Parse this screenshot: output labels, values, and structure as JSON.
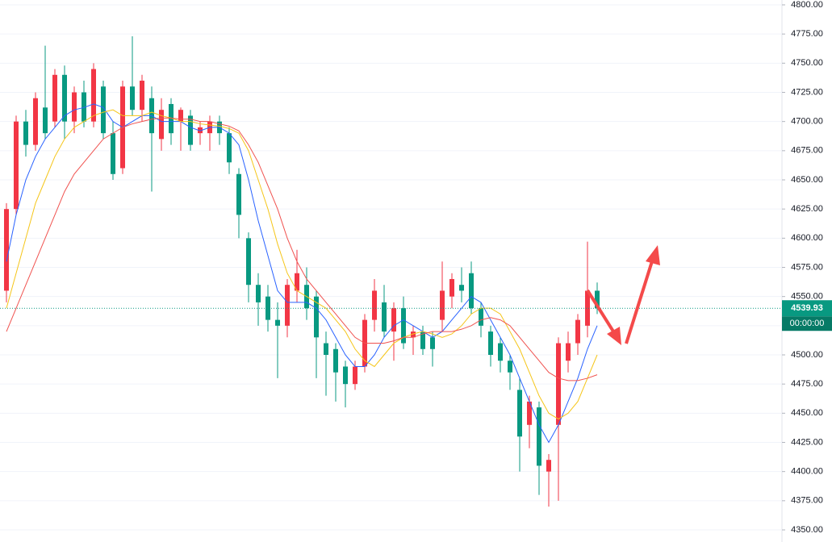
{
  "chart_data": {
    "type": "candlestick",
    "up_color": "#f23645",
    "down_color": "#089981",
    "open": [
      4555,
      4625,
      4700,
      4680,
      4712,
      4700,
      4740,
      4700,
      4725,
      4700,
      4730,
      4690,
      4660,
      4730,
      4710,
      4720,
      4685,
      4715,
      4700,
      4705,
      4690,
      4690,
      4700,
      4690,
      4655,
      4600,
      4560,
      4550,
      4530,
      4525,
      4555,
      4560,
      4550,
      4510,
      4505,
      4490,
      4475,
      4490,
      4530,
      4545,
      4520,
      4540,
      4515,
      4520,
      4515,
      4530,
      4550,
      4560,
      4570,
      4540,
      4520,
      4510,
      4495,
      4470,
      4440,
      4455,
      4400,
      4440,
      4495,
      4510,
      4525,
      4555
    ],
    "high": [
      4630,
      4705,
      4710,
      4725,
      4765,
      4745,
      4748,
      4730,
      4735,
      4750,
      4735,
      4700,
      4735,
      4773,
      4740,
      4730,
      4720,
      4720,
      4712,
      4710,
      4700,
      4705,
      4705,
      4695,
      4660,
      4605,
      4570,
      4560,
      4545,
      4565,
      4590,
      4575,
      4555,
      4520,
      4510,
      4495,
      4495,
      4535,
      4565,
      4560,
      4545,
      4550,
      4525,
      4525,
      4520,
      4580,
      4570,
      4575,
      4580,
      4545,
      4525,
      4515,
      4500,
      4480,
      4465,
      4460,
      4415,
      4515,
      4520,
      4535,
      4597,
      4562
    ],
    "low": [
      4545,
      4620,
      4670,
      4675,
      4685,
      4695,
      4685,
      4690,
      4695,
      4695,
      4685,
      4650,
      4655,
      4705,
      4700,
      4640,
      4675,
      4680,
      4675,
      4675,
      4680,
      4675,
      4680,
      4655,
      4600,
      4545,
      4525,
      4520,
      4480,
      4515,
      4545,
      4530,
      4480,
      4465,
      4460,
      4455,
      4470,
      4485,
      4520,
      4515,
      4495,
      4505,
      4500,
      4500,
      4490,
      4520,
      4540,
      4545,
      4535,
      4515,
      4490,
      4485,
      4470,
      4400,
      4420,
      4380,
      4370,
      4375,
      4485,
      4500,
      4515,
      4535
    ],
    "close": [
      4625,
      4700,
      4680,
      4720,
      4690,
      4740,
      4700,
      4725,
      4700,
      4745,
      4690,
      4655,
      4730,
      4710,
      4735,
      4690,
      4710,
      4690,
      4710,
      4680,
      4695,
      4700,
      4690,
      4665,
      4620,
      4560,
      4545,
      4530,
      4525,
      4560,
      4570,
      4540,
      4515,
      4500,
      4485,
      4475,
      4490,
      4530,
      4555,
      4520,
      4540,
      4510,
      4520,
      4505,
      4505,
      4555,
      4565,
      4555,
      4540,
      4525,
      4500,
      4495,
      4485,
      4430,
      4460,
      4405,
      4410,
      4510,
      4510,
      4530,
      4555,
      4539.93
    ],
    "series": [
      {
        "color": "#2962ff",
        "values": [
          4580,
          4620,
          4650,
          4670,
          4685,
          4695,
          4705,
          4710,
          4712,
          4715,
          4712,
          4700,
          4695,
          4700,
          4705,
          4705,
          4700,
          4700,
          4700,
          4695,
          4692,
          4695,
          4695,
          4690,
          4680,
          4650,
          4615,
          4585,
          4555,
          4545,
          4545,
          4545,
          4540,
          4530,
          4515,
          4500,
          4490,
          4490,
          4500,
          4515,
          4525,
          4530,
          4525,
          4520,
          4515,
          4520,
          4530,
          4540,
          4550,
          4545,
          4530,
          4515,
          4500,
          4480,
          4460,
          4440,
          4425,
          4440,
          4460,
          4480,
          4505,
          4525
        ]
      },
      {
        "color": "#f5c518",
        "values": [
          4540,
          4570,
          4600,
          4630,
          4650,
          4670,
          4685,
          4695,
          4700,
          4705,
          4708,
          4710,
          4705,
          4705,
          4705,
          4708,
          4705,
          4703,
          4700,
          4700,
          4698,
          4697,
          4696,
          4694,
          4690,
          4675,
          4650,
          4625,
          4595,
          4570,
          4555,
          4550,
          4545,
          4540,
          4530,
          4520,
          4505,
          4495,
          4490,
          4500,
          4510,
          4515,
          4518,
          4520,
          4518,
          4515,
          4518,
          4525,
          4535,
          4540,
          4540,
          4535,
          4520,
          4505,
          4485,
          4465,
          4450,
          4445,
          4450,
          4460,
          4480,
          4500
        ]
      },
      {
        "color": "#f0524f",
        "values": [
          4520,
          4540,
          4560,
          4580,
          4600,
          4620,
          4640,
          4655,
          4665,
          4675,
          4685,
          4690,
          4695,
          4698,
          4700,
          4702,
          4703,
          4703,
          4702,
          4702,
          4700,
          4700,
          4698,
          4696,
          4692,
          4680,
          4665,
          4645,
          4625,
          4600,
          4580,
          4565,
          4555,
          4545,
          4535,
          4525,
          4515,
          4510,
          4510,
          4510,
          4512,
          4515,
          4515,
          4518,
          4520,
          4520,
          4520,
          4522,
          4525,
          4530,
          4532,
          4530,
          4525,
          4515,
          4505,
          4495,
          4485,
          4480,
          4478,
          4478,
          4480,
          4483
        ]
      }
    ],
    "ylim": [
      4350,
      4800
    ],
    "yticks": [
      {
        "value": 4350,
        "label": "4350.00"
      },
      {
        "value": 4375,
        "label": "4375.00"
      },
      {
        "value": 4400,
        "label": "4400.00"
      },
      {
        "value": 4425,
        "label": "4425.00"
      },
      {
        "value": 4450,
        "label": "4450.00"
      },
      {
        "value": 4475,
        "label": "4475.00"
      },
      {
        "value": 4500,
        "label": "4500.00"
      },
      {
        "value": 4525,
        "label": "4525.00"
      },
      {
        "value": 4550,
        "label": "4550.00"
      },
      {
        "value": 4575,
        "label": "4575.00"
      },
      {
        "value": 4600,
        "label": "4600.00"
      },
      {
        "value": 4625,
        "label": "4625.00"
      },
      {
        "value": 4650,
        "label": "4650.00"
      },
      {
        "value": 4675,
        "label": "4675.00"
      },
      {
        "value": 4700,
        "label": "4700.00"
      },
      {
        "value": 4725,
        "label": "4725.00"
      },
      {
        "value": 4750,
        "label": "4750.00"
      },
      {
        "value": 4775,
        "label": "4775.00"
      },
      {
        "value": 4800,
        "label": "4800.00"
      }
    ],
    "grid": true,
    "last_price": 4539.93,
    "last_price_color": "#089981",
    "countdown": "00:00:00"
  }
}
